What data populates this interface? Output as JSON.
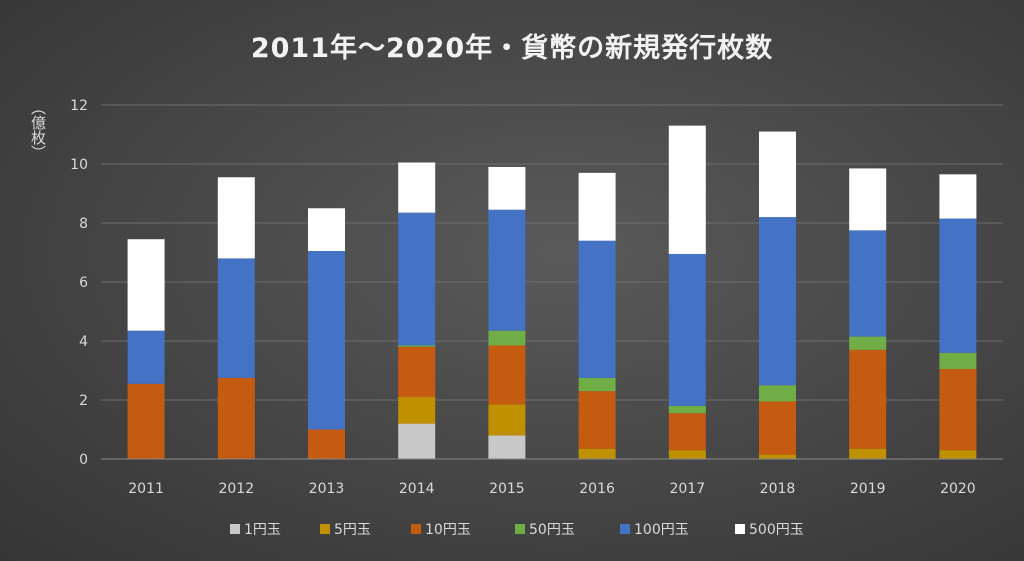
{
  "chart_data": {
    "type": "bar",
    "stacked": true,
    "title": "2011年～2020年・貨幣の新規発行枚数",
    "ylabel": "（億枚）",
    "xlabel": "",
    "ylim": [
      0,
      12
    ],
    "yticks": [
      0,
      2,
      4,
      6,
      8,
      10,
      12
    ],
    "grid": true,
    "legend_position": "bottom",
    "categories": [
      "2011",
      "2012",
      "2013",
      "2014",
      "2015",
      "2016",
      "2017",
      "2018",
      "2019",
      "2020"
    ],
    "series": [
      {
        "name": "1円玉",
        "color": "#c8c8c8",
        "values": [
          0.0,
          0.0,
          0.0,
          1.2,
          0.8,
          0.0,
          0.0,
          0.0,
          0.0,
          0.0
        ]
      },
      {
        "name": "5円玉",
        "color": "#bf9000",
        "values": [
          0.0,
          0.0,
          0.0,
          0.9,
          1.05,
          0.35,
          0.3,
          0.15,
          0.35,
          0.3
        ]
      },
      {
        "name": "10円玉",
        "color": "#c55a11",
        "values": [
          2.55,
          2.75,
          1.0,
          1.7,
          2.0,
          1.95,
          1.25,
          1.8,
          3.35,
          2.75
        ]
      },
      {
        "name": "50円玉",
        "color": "#70ad47",
        "values": [
          0.0,
          0.0,
          0.0,
          0.05,
          0.5,
          0.45,
          0.25,
          0.55,
          0.45,
          0.55
        ]
      },
      {
        "name": "100円玉",
        "color": "#4472c4",
        "values": [
          1.8,
          4.05,
          6.05,
          4.5,
          4.1,
          4.65,
          5.15,
          5.7,
          3.6,
          4.55
        ]
      },
      {
        "name": "500円玉",
        "color": "#ffffff",
        "values": [
          3.1,
          2.75,
          1.45,
          1.7,
          1.45,
          2.3,
          4.35,
          2.9,
          2.1,
          1.5
        ]
      }
    ]
  }
}
